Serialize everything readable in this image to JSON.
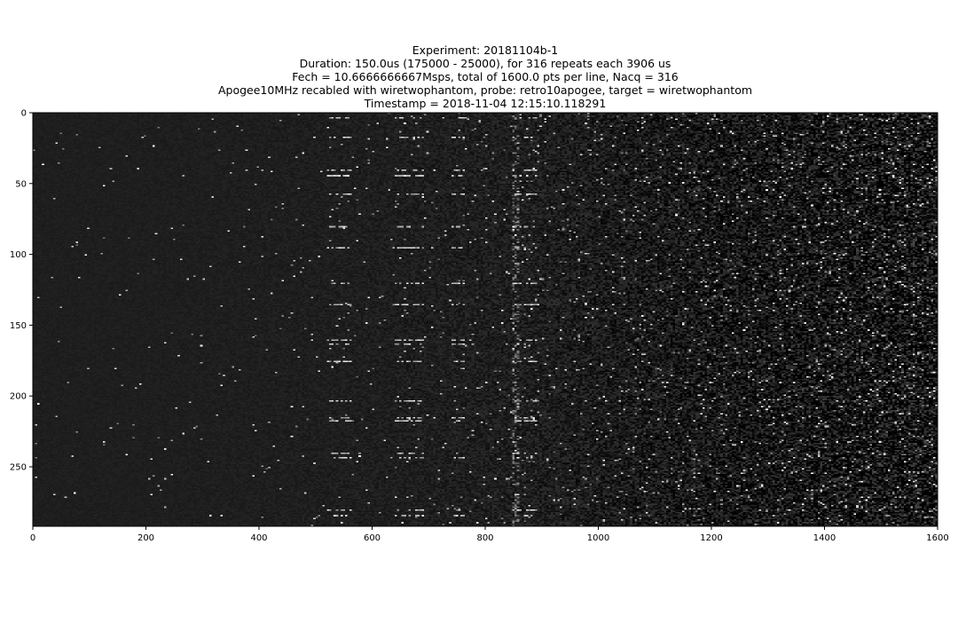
{
  "chart_data": {
    "type": "heatmap",
    "title_lines": [
      "Experiment: 20181104b-1",
      "Duration: 150.0us (175000 - 25000), for 316 repeats each 3906 us",
      "Fech = 10.6666666667Msps, total of 1600.0 pts per line, Nacq = 316",
      "Apogee10MHz recabled with wiretwophantom, probe: retro10apogee, target = wiretwophantom",
      "Timestamp = 2018-11-04 12:15:10.118291"
    ],
    "xlabel": "",
    "ylabel": "",
    "xlim": [
      0,
      1600
    ],
    "ylim": [
      292,
      0
    ],
    "x_ticks": [
      "0",
      "200",
      "400",
      "600",
      "800",
      "1000",
      "1200",
      "1400",
      "1600"
    ],
    "x_tick_values": [
      0,
      200,
      400,
      600,
      800,
      1000,
      1200,
      1400,
      1600
    ],
    "y_ticks": [
      "0",
      "50",
      "100",
      "150",
      "200",
      "250"
    ],
    "y_tick_values": [
      0,
      50,
      100,
      150,
      200,
      250
    ],
    "colormap": "gray",
    "grid": false,
    "features": {
      "bright_rows": [
        3,
        17,
        40,
        44,
        57,
        80,
        95,
        120,
        135,
        160,
        163,
        175,
        203,
        215,
        217,
        240,
        243,
        280,
        284
      ],
      "bright_column_groups": [
        [
          520,
          560
        ],
        [
          640,
          690
        ],
        [
          740,
          760
        ],
        [
          845,
          860
        ],
        [
          865,
          890
        ]
      ]
    }
  }
}
